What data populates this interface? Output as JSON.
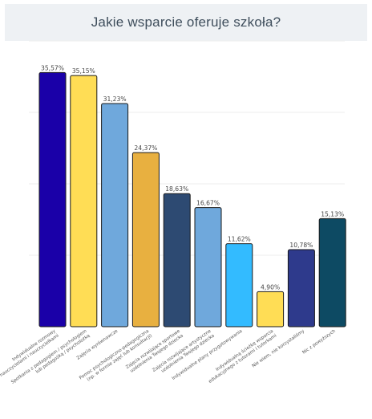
{
  "header": {
    "title": "Jakie wsparcie oferuje szkoła?"
  },
  "chart_data": {
    "type": "bar",
    "title": "Jakie wsparcie oferuje szkoła?",
    "xlabel": "",
    "ylabel": "",
    "ylim": [
      0,
      40
    ],
    "grid": true,
    "legend": "none",
    "categories": [
      [
        "Indywidualne rozmowy",
        "z nauczycielami i nauczycielkami"
      ],
      [
        "Spotkania z pedagogiem / psychologiem",
        "lub pedagożką / psycholożką"
      ],
      [
        "Zajęcia wyrównawcze"
      ],
      [
        "Pomoc psychologiczno-pedagogiczna",
        "(np. w formie zajęć lub konsultacji)"
      ],
      [
        "Zajęcia rozwijające sportowe",
        "uzdolnienia Twojego dziecka"
      ],
      [
        "Zajęcia rozwijające artystyczne",
        "uzdolnienia Twojego dziecka"
      ],
      [
        "Indywidualne plany przygotowywania"
      ],
      [
        "Indywidualną ścieżkę wsparcia",
        "edukacyjnego z tutorami i tutorkami"
      ],
      [
        "Nie wiem, nie korzystaliśmy"
      ],
      [
        "Nic z powyższych"
      ]
    ],
    "values": [
      35.57,
      35.15,
      31.23,
      24.37,
      18.63,
      16.67,
      11.62,
      4.9,
      10.78,
      15.13
    ],
    "value_labels": [
      "35,57%",
      "35,15%",
      "31,23%",
      "24,37%",
      "18,63%",
      "16,67%",
      "11,62%",
      "4,90%",
      "10,78%",
      "15,13%"
    ],
    "colors": [
      "#1a00a8",
      "#ffdd55",
      "#6fa8dc",
      "#e8b040",
      "#2d4a72",
      "#6fa8dc",
      "#33bbff",
      "#ffdd55",
      "#2e3a8c",
      "#0d4a63"
    ]
  }
}
